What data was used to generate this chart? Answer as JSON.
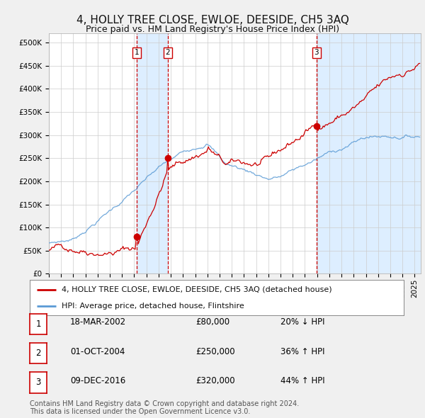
{
  "title": "4, HOLLY TREE CLOSE, EWLOE, DEESIDE, CH5 3AQ",
  "subtitle": "Price paid vs. HM Land Registry's House Price Index (HPI)",
  "ylabel_ticks": [
    "£0",
    "£50K",
    "£100K",
    "£150K",
    "£200K",
    "£250K",
    "£300K",
    "£350K",
    "£400K",
    "£450K",
    "£500K"
  ],
  "ytick_values": [
    0,
    50000,
    100000,
    150000,
    200000,
    250000,
    300000,
    350000,
    400000,
    450000,
    500000
  ],
  "xlim_start": 1995.0,
  "xlim_end": 2025.5,
  "ylim": [
    0,
    520000
  ],
  "transactions": [
    {
      "date_num": 2002.21,
      "price": 80000,
      "label": "1"
    },
    {
      "date_num": 2004.75,
      "price": 250000,
      "label": "2"
    },
    {
      "date_num": 2016.94,
      "price": 320000,
      "label": "3"
    }
  ],
  "legend_entries": [
    {
      "label": "4, HOLLY TREE CLOSE, EWLOE, DEESIDE, CH5 3AQ (detached house)",
      "color": "#cc0000",
      "lw": 1.5
    },
    {
      "label": "HPI: Average price, detached house, Flintshire",
      "color": "#5b9bd5",
      "lw": 1.5
    }
  ],
  "table_rows": [
    {
      "num": "1",
      "date": "18-MAR-2002",
      "price": "£80,000",
      "change": "20% ↓ HPI"
    },
    {
      "num": "2",
      "date": "01-OCT-2004",
      "price": "£250,000",
      "change": "36% ↑ HPI"
    },
    {
      "num": "3",
      "date": "09-DEC-2016",
      "price": "£320,000",
      "change": "44% ↑ HPI"
    }
  ],
  "footnote": "Contains HM Land Registry data © Crown copyright and database right 2024.\nThis data is licensed under the Open Government Licence v3.0.",
  "background_color": "#f0f0f0",
  "plot_bg_color": "#ffffff",
  "grid_color": "#cccccc",
  "vline_color": "#cc0000",
  "box_color": "#cc0000",
  "shade_color": "#ddeeff",
  "title_fontsize": 11,
  "subtitle_fontsize": 9,
  "tick_fontsize": 7.5,
  "legend_fontsize": 8,
  "table_fontsize": 8.5,
  "footnote_fontsize": 7
}
